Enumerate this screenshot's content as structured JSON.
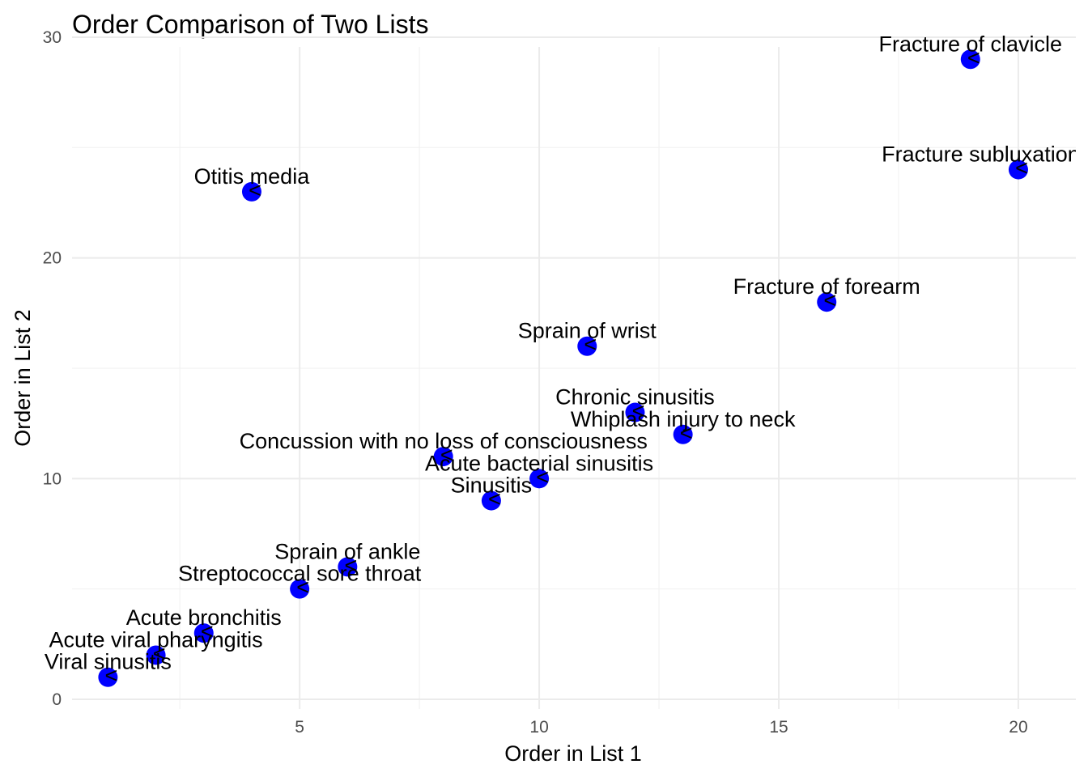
{
  "chart_data": {
    "type": "scatter",
    "title": "Order Comparison of Two Lists",
    "xlabel": "Order in List 1",
    "ylabel": "Order in List 2",
    "xlim": [
      0.25,
      21.2
    ],
    "ylim": [
      0,
      30
    ],
    "x_ticks": [
      5,
      10,
      15,
      20
    ],
    "y_ticks": [
      0,
      10,
      20,
      30
    ],
    "grid": true,
    "point_color": "#0000ff",
    "point_glyph": "<",
    "points": [
      {
        "label": "Viral sinusitis",
        "x": 1,
        "y": 1
      },
      {
        "label": "Acute viral pharyngitis",
        "x": 2,
        "y": 2
      },
      {
        "label": "Acute bronchitis",
        "x": 3,
        "y": 3
      },
      {
        "label": "Otitis media",
        "x": 4,
        "y": 23
      },
      {
        "label": "Streptococcal sore throat",
        "x": 5,
        "y": 5
      },
      {
        "label": "Sprain of ankle",
        "x": 6,
        "y": 6
      },
      {
        "label": "Concussion with no loss of consciousness",
        "x": 8,
        "y": 11
      },
      {
        "label": "Sinusitis",
        "x": 9,
        "y": 9
      },
      {
        "label": "Acute bacterial sinusitis",
        "x": 10,
        "y": 10
      },
      {
        "label": "Sprain of wrist",
        "x": 11,
        "y": 16
      },
      {
        "label": "Chronic sinusitis",
        "x": 12,
        "y": 13
      },
      {
        "label": "Whiplash injury to neck",
        "x": 13,
        "y": 12
      },
      {
        "label": "Fracture of forearm",
        "x": 16,
        "y": 18
      },
      {
        "label": "Fracture of clavicle",
        "x": 19,
        "y": 29
      },
      {
        "label": "Fracture subluxation of wrist",
        "x": 20,
        "y": 24
      }
    ]
  }
}
